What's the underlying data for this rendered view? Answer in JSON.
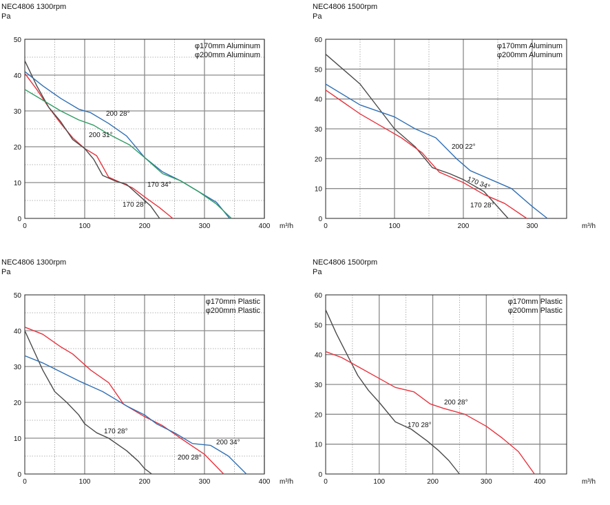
{
  "colors": {
    "black": "#4a4a4a",
    "red": "#e8323c",
    "blue": "#2f6fb5",
    "green": "#2e9b62"
  },
  "panels": [
    {
      "title": "NEC4806 1300rpm",
      "ylabel": "Pa",
      "unit": "m³/h",
      "legend": [
        "φ170mm Aluminum",
        "φ200mm Aluminum"
      ]
    },
    {
      "title": "NEC4806 1500rpm",
      "ylabel": "Pa",
      "unit": "m³/h",
      "legend": [
        "φ170mm Aluminum",
        "φ200mm Aluminum"
      ]
    },
    {
      "title": "NEC4806 1300rpm",
      "ylabel": "Pa",
      "unit": "m³/h",
      "legend": [
        "φ170mm Plastic",
        "φ200mm Plastic"
      ]
    },
    {
      "title": "NEC4806 1500rpm",
      "ylabel": "Pa",
      "unit": "m³/h",
      "legend": [
        "φ170mm Plastic",
        "φ200mm Plastic"
      ]
    }
  ],
  "chart_data": [
    {
      "type": "line",
      "title": "NEC4806 1300rpm",
      "xlabel": "m³/h",
      "ylabel": "Pa",
      "xlim": [
        0,
        400
      ],
      "ylim": [
        0,
        50
      ],
      "xticks": [
        0,
        100,
        200,
        300,
        400
      ],
      "yticks": [
        0,
        10,
        20,
        30,
        40,
        50
      ],
      "grid": true,
      "series": [
        {
          "name": "170 28°",
          "color": "red",
          "x": [
            0,
            20,
            40,
            60,
            80,
            100,
            120,
            140,
            160,
            180,
            200,
            225,
            247
          ],
          "y": [
            40.5,
            36,
            31,
            26.5,
            22.5,
            19.5,
            17.5,
            11.5,
            10,
            8.5,
            6,
            3,
            0
          ]
        },
        {
          "name": "170 34°",
          "color": "black",
          "x": [
            0,
            20,
            40,
            60,
            80,
            100,
            115,
            130,
            150,
            170,
            190,
            210,
            225
          ],
          "y": [
            44,
            37,
            31,
            27,
            22,
            19.5,
            16.5,
            12,
            10.5,
            9.5,
            6.5,
            3.5,
            0
          ]
        },
        {
          "name": "200 28°",
          "color": "blue",
          "x": [
            0,
            30,
            60,
            90,
            110,
            140,
            170,
            200,
            230,
            260,
            290,
            320,
            342
          ],
          "y": [
            41,
            37,
            33.5,
            30.5,
            29.5,
            26.5,
            23,
            17,
            13,
            10.5,
            7.5,
            4.5,
            0
          ]
        },
        {
          "name": "200 31°",
          "color": "green",
          "x": [
            0,
            30,
            60,
            90,
            115,
            140,
            175,
            200,
            230,
            260,
            290,
            320,
            345
          ],
          "y": [
            36,
            33,
            30,
            27.5,
            26,
            23.5,
            20.5,
            17,
            12.5,
            10.5,
            7.5,
            4,
            0
          ]
        }
      ],
      "annotations": [
        "200 28°",
        "200 31°",
        "170 34°",
        "170 28°"
      ]
    },
    {
      "type": "line",
      "title": "NEC4806 1500rpm",
      "xlabel": "m³/h",
      "ylabel": "Pa",
      "xlim": [
        0,
        350
      ],
      "ylim": [
        0,
        60
      ],
      "xticks": [
        0,
        100,
        200,
        300
      ],
      "yticks": [
        0,
        10,
        20,
        30,
        40,
        50,
        60
      ],
      "grid": true,
      "series": [
        {
          "name": "170 28°",
          "color": "black",
          "x": [
            0,
            25,
            50,
            70,
            100,
            130,
            155,
            180,
            200,
            230,
            265
          ],
          "y": [
            55,
            50,
            45,
            39,
            30,
            24,
            17,
            15,
            13,
            9,
            0
          ]
        },
        {
          "name": "170 34°",
          "color": "red",
          "x": [
            0,
            25,
            50,
            80,
            110,
            140,
            165,
            200,
            230,
            260,
            292
          ],
          "y": [
            43,
            39,
            35,
            31,
            27,
            22,
            15.5,
            12,
            8,
            5,
            0
          ]
        },
        {
          "name": "200 22°",
          "color": "blue",
          "x": [
            0,
            50,
            100,
            130,
            160,
            190,
            210,
            240,
            270,
            300,
            322
          ],
          "y": [
            45,
            38,
            34,
            30,
            27,
            20,
            16,
            13,
            10,
            4,
            0
          ]
        }
      ],
      "annotations": [
        "200 22°",
        "170 34°",
        "170 28°"
      ]
    },
    {
      "type": "line",
      "title": "NEC4806 1300rpm",
      "xlabel": "m³/h",
      "ylabel": "Pa",
      "xlim": [
        0,
        400
      ],
      "ylim": [
        0,
        50
      ],
      "xticks": [
        0,
        100,
        200,
        300,
        400
      ],
      "yticks": [
        0,
        10,
        20,
        30,
        40,
        50
      ],
      "grid": true,
      "series": [
        {
          "name": "170 28°",
          "color": "black",
          "x": [
            0,
            30,
            50,
            70,
            90,
            100,
            120,
            140,
            170,
            190,
            200,
            212
          ],
          "y": [
            40,
            29,
            23,
            20,
            16.5,
            14,
            11.5,
            10,
            6.5,
            3.5,
            1.5,
            0
          ]
        },
        {
          "name": "200 28°",
          "color": "red",
          "x": [
            0,
            30,
            60,
            80,
            110,
            140,
            165,
            200,
            230,
            260,
            300,
            332
          ],
          "y": [
            41,
            39,
            35.5,
            33.5,
            29,
            25.5,
            19.5,
            16,
            13.5,
            10,
            5.5,
            0
          ]
        },
        {
          "name": "200 34°",
          "color": "blue",
          "x": [
            0,
            30,
            60,
            90,
            130,
            170,
            200,
            220,
            250,
            280,
            310,
            340,
            370
          ],
          "y": [
            33,
            31,
            28.5,
            26,
            23,
            19,
            16.5,
            14,
            11.5,
            8.5,
            8,
            5,
            0
          ]
        }
      ],
      "annotations": [
        "170 28°",
        "200 34°",
        "200 28°"
      ]
    },
    {
      "type": "line",
      "title": "NEC4806 1500rpm",
      "xlabel": "m³/h",
      "ylabel": "Pa",
      "xlim": [
        0,
        450
      ],
      "ylim": [
        0,
        60
      ],
      "xticks": [
        0,
        100,
        200,
        300,
        400
      ],
      "yticks": [
        0,
        10,
        20,
        30,
        40,
        50,
        60
      ],
      "grid": true,
      "series": [
        {
          "name": "170 28°",
          "color": "black",
          "x": [
            0,
            20,
            40,
            60,
            80,
            100,
            130,
            160,
            190,
            210,
            230,
            250
          ],
          "y": [
            55,
            47,
            40,
            33,
            28,
            24,
            17.5,
            15,
            11,
            8,
            4.5,
            0
          ]
        },
        {
          "name": "200 28°",
          "color": "red",
          "x": [
            0,
            30,
            60,
            100,
            130,
            165,
            195,
            220,
            260,
            300,
            330,
            360,
            390
          ],
          "y": [
            41,
            39,
            36,
            32,
            29,
            27.5,
            23.5,
            22,
            20,
            16,
            12,
            7.5,
            0
          ]
        }
      ],
      "annotations": [
        "170 28°",
        "200 28°"
      ]
    }
  ]
}
